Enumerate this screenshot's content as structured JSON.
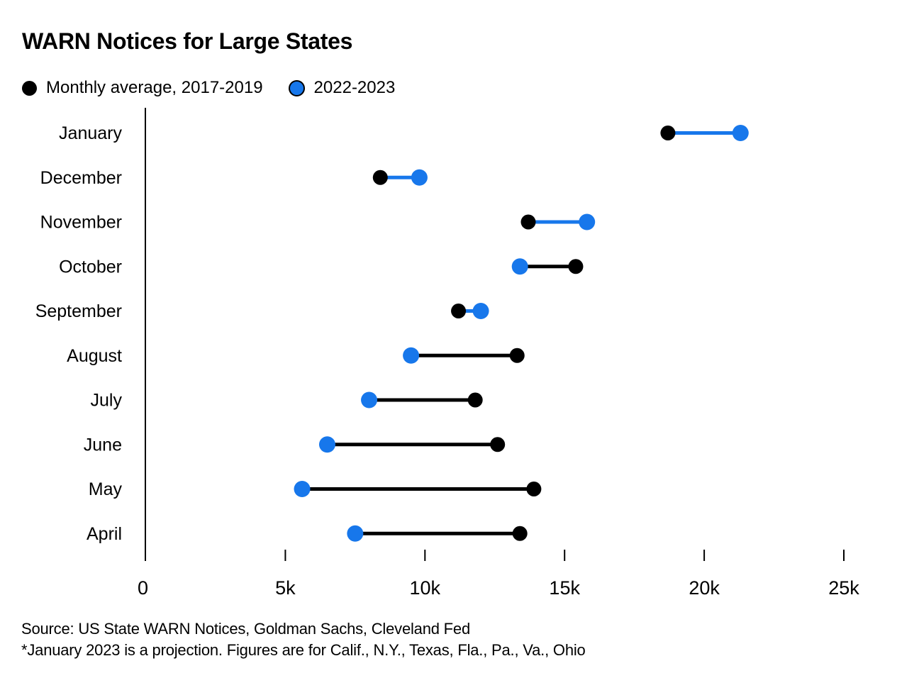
{
  "title": "WARN Notices for Large States",
  "legend": [
    {
      "label": "Monthly average, 2017-2019",
      "color": "#000000",
      "outlined": false
    },
    {
      "label": "2022-2023",
      "color": "#1777eb",
      "outlined": true
    }
  ],
  "source_line": "Source: US State WARN Notices, Goldman Sachs, Cleveland Fed",
  "footnote_line": "*January 2023 is a projection. Figures are for Calif., N.Y., Texas, Fla., Pa., Va., Ohio",
  "colors": {
    "background": "#ffffff",
    "black_series": "#000000",
    "blue_series": "#1777eb",
    "axis": "#000000",
    "text": "#000000"
  },
  "chart_data": {
    "type": "scatter",
    "variant": "dumbbell",
    "title": "WARN Notices for Large States",
    "categories": [
      "January",
      "December",
      "November",
      "October",
      "September",
      "August",
      "July",
      "June",
      "May",
      "April"
    ],
    "series": [
      {
        "name": "Monthly average, 2017-2019",
        "color": "#000000",
        "values": [
          18700,
          8400,
          13700,
          15400,
          11200,
          13300,
          11800,
          12600,
          13900,
          13400
        ]
      },
      {
        "name": "2022-2023",
        "color": "#1777eb",
        "values": [
          21300,
          9800,
          15800,
          13400,
          12000,
          9500,
          8000,
          6500,
          5600,
          7500
        ]
      }
    ],
    "x_ticks": [
      {
        "label": "0",
        "value": 0
      },
      {
        "label": "5k",
        "value": 5000
      },
      {
        "label": "10k",
        "value": 10000
      },
      {
        "label": "15k",
        "value": 15000
      },
      {
        "label": "20k",
        "value": 20000
      },
      {
        "label": "25k",
        "value": 25000
      }
    ],
    "xlim": [
      0,
      25000
    ],
    "xlabel": "",
    "ylabel": "",
    "grid": false,
    "legend_position": "top-left",
    "connector_rule": "connector line takes the color of the series with the larger value",
    "notes": "January 2023 value is a projection"
  }
}
